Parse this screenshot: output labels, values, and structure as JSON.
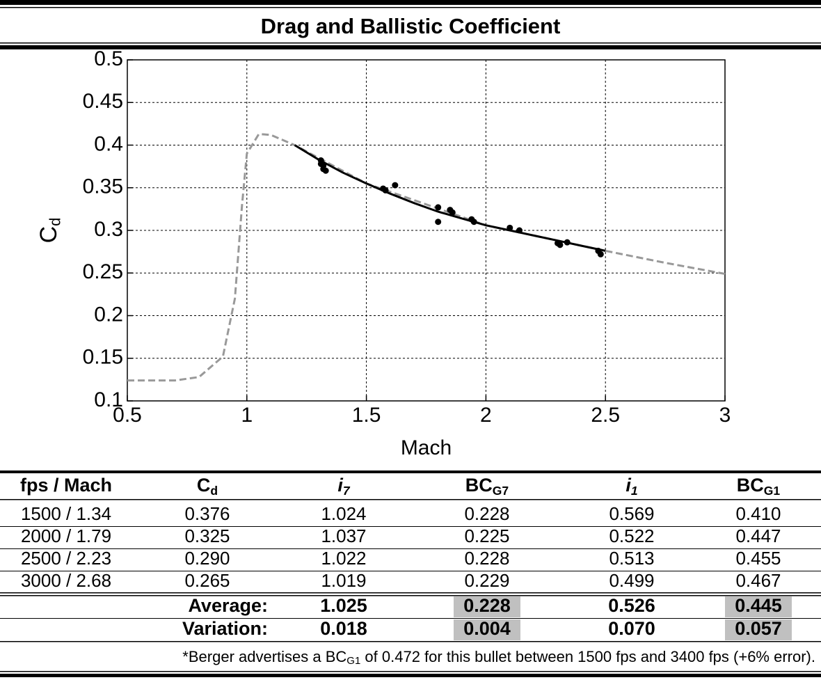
{
  "title": "Drag and Ballistic Coefficient",
  "chart_data": {
    "type": "line",
    "xlabel": "Mach",
    "ylabel": {
      "main": "C",
      "sub": "d"
    },
    "xlim": [
      0.5,
      3
    ],
    "ylim": [
      0.1,
      0.5
    ],
    "xticks": [
      0.5,
      1,
      1.5,
      2,
      2.5,
      3
    ],
    "yticks": [
      0.1,
      0.15,
      0.2,
      0.25,
      0.3,
      0.35,
      0.4,
      0.45,
      0.5
    ],
    "grid": true,
    "series": [
      {
        "type": "line",
        "style": "dashed",
        "color": "#999999",
        "x": [
          0.5,
          0.7,
          0.8,
          0.9,
          0.95,
          0.98,
          1.0,
          1.05,
          1.1,
          1.2,
          1.5,
          2.0,
          2.5,
          2.75,
          3.0
        ],
        "y": [
          0.124,
          0.124,
          0.128,
          0.152,
          0.22,
          0.33,
          0.39,
          0.413,
          0.412,
          0.4,
          0.355,
          0.306,
          0.276,
          0.262,
          0.249
        ]
      },
      {
        "type": "line",
        "style": "solid",
        "color": "#000000",
        "x": [
          1.2,
          1.3,
          1.4,
          1.5,
          1.6,
          1.7,
          1.8,
          1.9,
          2.0,
          2.1,
          2.2,
          2.3,
          2.4,
          2.5
        ],
        "y": [
          0.4,
          0.383,
          0.368,
          0.355,
          0.343,
          0.332,
          0.322,
          0.314,
          0.306,
          0.3,
          0.294,
          0.288,
          0.282,
          0.276
        ]
      },
      {
        "type": "scatter",
        "color": "#000000",
        "x": [
          1.31,
          1.31,
          1.32,
          1.32,
          1.33,
          1.57,
          1.58,
          1.62,
          1.8,
          1.8,
          1.85,
          1.86,
          1.94,
          1.95,
          2.1,
          2.14,
          2.3,
          2.31,
          2.34,
          2.47,
          2.48
        ],
        "y": [
          0.382,
          0.378,
          0.376,
          0.372,
          0.37,
          0.349,
          0.347,
          0.353,
          0.327,
          0.31,
          0.324,
          0.321,
          0.313,
          0.31,
          0.303,
          0.3,
          0.285,
          0.283,
          0.286,
          0.276,
          0.272
        ]
      }
    ]
  },
  "table": {
    "headers": [
      {
        "main": "fps / Mach"
      },
      {
        "main": "C",
        "sub": "d"
      },
      {
        "main": "i",
        "sub": "7",
        "italic": true
      },
      {
        "main": "BC",
        "sub": "G7"
      },
      {
        "main": "i",
        "sub": "1",
        "italic": true
      },
      {
        "main": "BC",
        "sub": "G1"
      }
    ],
    "rows": [
      [
        "1500 / 1.34",
        "0.376",
        "1.024",
        "0.228",
        "0.569",
        "0.410"
      ],
      [
        "2000 / 1.79",
        "0.325",
        "1.037",
        "0.225",
        "0.522",
        "0.447"
      ],
      [
        "2500 / 2.23",
        "0.290",
        "1.022",
        "0.228",
        "0.513",
        "0.455"
      ],
      [
        "3000 / 2.68",
        "0.265",
        "1.019",
        "0.229",
        "0.499",
        "0.467"
      ]
    ],
    "summary": [
      {
        "label": "Average:",
        "values": [
          "1.025",
          "0.228",
          "0.526",
          "0.445"
        ]
      },
      {
        "label": "Variation:",
        "values": [
          "0.018",
          "0.004",
          "0.070",
          "0.057"
        ]
      }
    ],
    "highlight_columns": [
      false,
      true,
      false,
      true
    ],
    "highlight_color": "#c0c0c0"
  },
  "footnote": {
    "before": "*Berger advertises a BC",
    "sub": "G1",
    "after": " of 0.472 for this bullet between 1500 fps and 3400 fps (+6% error)."
  }
}
